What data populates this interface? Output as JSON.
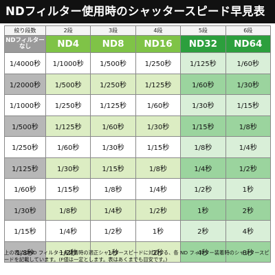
{
  "title": "NDフィルター使用時のシャッタースピード早見表",
  "header": {
    "steps": [
      "絞り段数",
      "2段",
      "3段",
      "4段",
      "5段",
      "6段"
    ],
    "base_label": "NDフィルター\nなし",
    "filters": [
      "ND4",
      "ND8",
      "ND16",
      "ND32",
      "ND64"
    ]
  },
  "rows": [
    [
      "1/4000秒",
      "1/1000秒",
      "1/500秒",
      "1/250秒",
      "1/125秒",
      "1/60秒"
    ],
    [
      "1/2000秒",
      "1/500秒",
      "1/250秒",
      "1/125秒",
      "1/60秒",
      "1/30秒"
    ],
    [
      "1/1000秒",
      "1/250秒",
      "1/125秒",
      "1/60秒",
      "1/30秒",
      "1/15秒"
    ],
    [
      "1/500秒",
      "1/125秒",
      "1/60秒",
      "1/30秒",
      "1/15秒",
      "1/8秒"
    ],
    [
      "1/250秒",
      "1/60秒",
      "1/30秒",
      "1/15秒",
      "1/8秒",
      "1/4秒"
    ],
    [
      "1/125秒",
      "1/30秒",
      "1/15秒",
      "1/8秒",
      "1/4秒",
      "1/2秒"
    ],
    [
      "1/60秒",
      "1/15秒",
      "1/8秒",
      "1/4秒",
      "1/2秒",
      "1秒"
    ],
    [
      "1/30秒",
      "1/8秒",
      "1/4秒",
      "1/2秒",
      "1秒",
      "2秒"
    ],
    [
      "1/15秒",
      "1/4秒",
      "1/2秒",
      "1秒",
      "2秒",
      "4秒"
    ],
    [
      "1/8秒",
      "1/2秒",
      "1秒",
      "2秒",
      "4秒",
      "8秒"
    ]
  ],
  "note": "上の表にはND フィルター未装着時の適正シャッタースピードに対応する、各 ND フィルター装着時のシャッタースピードを記載しています。(F値は一定とします。表はあくまでも目安です。)",
  "colors": {
    "title_bg": "#111111",
    "header_gray": "#9a9a9a",
    "light_green": "#7fc347",
    "dark_green": "#2c9f3d",
    "pale_green": "#dcedc3",
    "pale_green_alt": "#9bd49e",
    "gray_label": "#b7b7b7"
  }
}
